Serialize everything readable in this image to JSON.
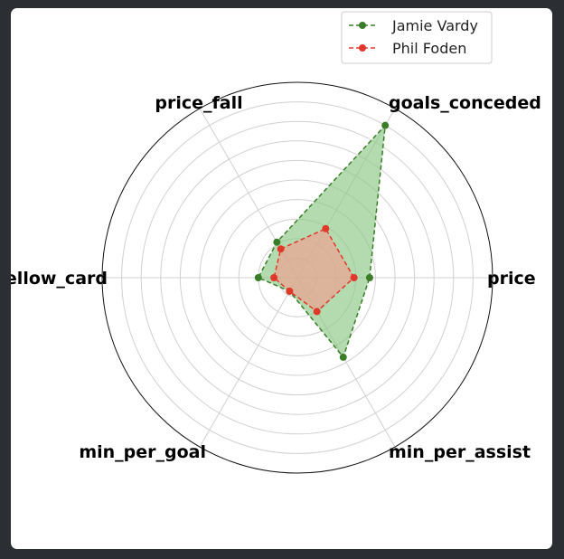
{
  "chart_data": {
    "type": "radar",
    "title": "",
    "categories": [
      "price",
      "goals_conceded",
      "price_fall",
      "yellow_card",
      "min_per_goal",
      "min_per_assist"
    ],
    "rmax": 100,
    "ring_step": 10,
    "grid": true,
    "legend_position": "top-right",
    "series": [
      {
        "name": "Jamie Vardy",
        "values": [
          37,
          90,
          21,
          20,
          8,
          47
        ],
        "color": "#3a7d28",
        "fill": "#8cc785"
      },
      {
        "name": "Phil Foden",
        "values": [
          29,
          29,
          17,
          12,
          8,
          20
        ],
        "color": "#e0392b",
        "fill": "#f0a090"
      }
    ]
  }
}
